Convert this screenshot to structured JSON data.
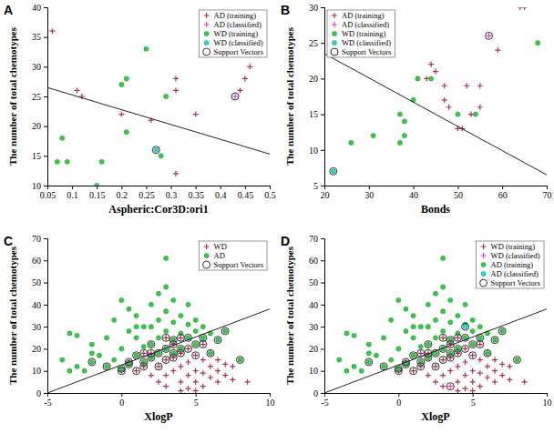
{
  "chart_data": [
    {
      "type": "scatter",
      "title": "A",
      "x_label": "Aspheric:Cor3D:ori1",
      "y_label": "The number of total chemotypes",
      "xlim": [
        0.05,
        0.5
      ],
      "xticks": [
        0.05,
        0.1,
        0.15,
        0.2,
        0.25,
        0.3,
        0.35,
        0.4,
        0.45,
        0.5
      ],
      "ylim": [
        10,
        40
      ],
      "yticks": [
        10,
        15,
        20,
        25,
        30,
        35,
        40
      ],
      "legend": "upper right",
      "series": [
        {
          "name": "AD (training)",
          "type": "scatter",
          "marker": "plus",
          "color": "#b0304a",
          "x": [
            0.06,
            0.11,
            0.12,
            0.2,
            0.26,
            0.31,
            0.31,
            0.31,
            0.35,
            0.44,
            0.45,
            0.46
          ],
          "values": [
            36,
            26,
            25,
            22,
            21,
            28,
            26,
            12,
            22,
            26,
            28,
            30
          ]
        },
        {
          "name": "AD (classified)",
          "type": "scatter",
          "marker": "plus",
          "color": "#e040d0",
          "x": [
            0.43
          ],
          "values": [
            25
          ]
        },
        {
          "name": "WD (training)",
          "type": "scatter",
          "marker": "dot",
          "color": "#33cc44",
          "x": [
            0.07,
            0.08,
            0.09,
            0.15,
            0.16,
            0.2,
            0.21,
            0.21,
            0.25,
            0.28,
            0.29
          ],
          "values": [
            14,
            18,
            14,
            10,
            14,
            27,
            28,
            19,
            33,
            15,
            25
          ]
        },
        {
          "name": "WD (classified)",
          "type": "scatter",
          "marker": "dot",
          "color": "#22dddd",
          "x": [
            0.27
          ],
          "values": [
            16
          ]
        },
        {
          "name": "Support Vectors",
          "type": "scatter",
          "marker": "circle",
          "color": "#333333",
          "x": [
            0.43,
            0.27
          ],
          "values": [
            25,
            16
          ]
        },
        {
          "type": "line",
          "color": "#222222",
          "x": [
            0.05,
            0.5
          ],
          "values": [
            26.5,
            15.3
          ]
        }
      ]
    },
    {
      "type": "scatter",
      "title": "B",
      "x_label": "Bonds",
      "y_label": "The number of total chemotypes",
      "xlim": [
        20,
        70
      ],
      "xticks": [
        20,
        30,
        40,
        50,
        60,
        70
      ],
      "ylim": [
        5,
        30
      ],
      "yticks": [
        5,
        10,
        15,
        20,
        25,
        30
      ],
      "legend": "upper left",
      "series": [
        {
          "name": "AD (training)",
          "type": "scatter",
          "marker": "plus",
          "color": "#b0304a",
          "x": [
            43,
            44,
            45,
            47,
            47,
            48,
            50,
            51,
            52,
            53,
            55,
            55,
            59,
            64,
            65
          ],
          "values": [
            20,
            22,
            21,
            19,
            17,
            16,
            13,
            13,
            19,
            15,
            19,
            16,
            24,
            30,
            30
          ]
        },
        {
          "name": "AD (classified)",
          "type": "scatter",
          "marker": "plus",
          "color": "#e040d0",
          "x": [
            57
          ],
          "values": [
            26
          ]
        },
        {
          "name": "WD (training)",
          "type": "scatter",
          "marker": "dot",
          "color": "#33cc44",
          "x": [
            26,
            31,
            37,
            37,
            38,
            38,
            40,
            41,
            44,
            50,
            54,
            68
          ],
          "values": [
            11,
            12,
            15,
            11,
            14,
            12,
            17,
            20,
            20,
            15,
            15,
            25
          ]
        },
        {
          "name": "WD (classified)",
          "type": "scatter",
          "marker": "dot",
          "color": "#22dddd",
          "x": [
            22
          ],
          "values": [
            7
          ]
        },
        {
          "name": "Support Vectors",
          "type": "scatter",
          "marker": "circle",
          "color": "#333333",
          "x": [
            57,
            22
          ],
          "values": [
            26,
            7
          ]
        },
        {
          "type": "line",
          "color": "#222222",
          "x": [
            20,
            70
          ],
          "values": [
            23.5,
            6.5
          ]
        }
      ]
    },
    {
      "type": "scatter",
      "title": "C",
      "x_label": "XlogP",
      "y_label": "The number of total chemotypes",
      "xlim": [
        -5,
        10
      ],
      "xticks": [
        -5,
        0,
        5,
        10
      ],
      "ylim": [
        0,
        70
      ],
      "yticks": [
        0,
        10,
        20,
        30,
        40,
        50,
        60,
        70
      ],
      "legend": "upper right",
      "series": [
        {
          "name": "WD",
          "type": "scatter",
          "marker": "plus",
          "color": "#b0304a",
          "x": [
            0.5,
            1,
            1.5,
            2,
            2,
            2.5,
            2.5,
            3,
            3,
            3,
            3.5,
            3.5,
            3.5,
            4,
            4,
            4,
            4.5,
            4.5,
            4.5,
            4.5,
            5,
            5,
            5,
            5.5,
            5.5,
            5.5,
            5.5,
            6,
            6,
            6,
            6.5,
            6.5,
            6.5,
            7,
            7,
            7.5,
            7.5,
            8.5,
            2,
            1.5,
            3,
            4,
            5,
            4,
            0
          ],
          "values": [
            14,
            10,
            12,
            8,
            18,
            5,
            12,
            3,
            8,
            15,
            10,
            16,
            22,
            5,
            12,
            18,
            2,
            8,
            14,
            20,
            5,
            10,
            17,
            3,
            9,
            15,
            22,
            7,
            12,
            18,
            5,
            10,
            15,
            8,
            13,
            6,
            12,
            5,
            22,
            18,
            25,
            25,
            1,
            1,
            10
          ]
        },
        {
          "name": "AD",
          "type": "scatter",
          "marker": "dot",
          "color": "#33cc44",
          "x": [
            -4,
            -3.5,
            -3,
            -3.5,
            -3,
            -2.5,
            -2,
            -2,
            -1.5,
            -1,
            -1,
            -0.5,
            -0.5,
            0,
            0,
            0,
            0.5,
            0.5,
            0.5,
            1,
            1,
            1,
            1.5,
            1.5,
            1.5,
            2,
            2,
            2,
            2,
            2.5,
            2.5,
            2.5,
            3,
            3,
            3,
            3,
            3,
            3.5,
            3.5,
            3.5,
            4,
            4,
            4,
            4.5,
            4.5,
            4.5,
            5,
            5,
            5,
            5.5,
            5.5,
            6,
            6,
            6.5,
            7,
            8,
            -2,
            1,
            2.5,
            3.5
          ],
          "values": [
            15,
            27,
            26,
            10,
            12,
            10,
            14,
            22,
            17,
            25,
            12,
            33,
            15,
            42,
            20,
            11,
            38,
            28,
            13,
            35,
            25,
            17,
            30,
            21,
            14,
            40,
            30,
            22,
            16,
            33,
            25,
            18,
            61,
            48,
            37,
            28,
            20,
            42,
            32,
            24,
            35,
            27,
            20,
            40,
            31,
            25,
            33,
            28,
            22,
            30,
            25,
            27,
            18,
            24,
            28,
            15,
            18,
            30,
            45,
            18
          ]
        },
        {
          "name": "Support Vectors",
          "type": "scatter",
          "marker": "circle",
          "color": "#333333",
          "x": [
            -2,
            -1,
            0,
            0,
            0.5,
            0.5,
            1,
            1,
            1.5,
            1.5,
            1.5,
            2,
            2,
            2,
            2.5,
            2.5,
            3,
            3,
            3,
            3.5,
            3.5,
            3.5,
            3.5,
            4,
            4,
            4,
            4.5,
            4.5,
            5,
            5,
            5.5,
            5.5,
            6,
            6.5,
            8,
            7
          ],
          "values": [
            14,
            12,
            11,
            10,
            13,
            14,
            17,
            10,
            14,
            12,
            18,
            16,
            18,
            22,
            18,
            12,
            20,
            15,
            25,
            24,
            22,
            18,
            16,
            20,
            25,
            18,
            25,
            20,
            22,
            17,
            25,
            22,
            18,
            24,
            15,
            28
          ]
        },
        {
          "type": "line",
          "color": "#222222",
          "x": [
            -5,
            10
          ],
          "values": [
            0,
            38
          ]
        }
      ]
    },
    {
      "type": "scatter",
      "title": "D",
      "x_label": "XlogP",
      "y_label": "The number of total chemotypes",
      "xlim": [
        -5,
        10
      ],
      "xticks": [
        -5,
        0,
        5,
        10
      ],
      "ylim": [
        0,
        70
      ],
      "yticks": [
        0,
        10,
        20,
        30,
        40,
        50,
        60,
        70
      ],
      "legend": "upper right",
      "series": [
        {
          "name": "WD (training)",
          "type": "scatter",
          "marker": "plus",
          "color": "#b0304a",
          "x": [
            0.5,
            1,
            1.5,
            2,
            2,
            2.5,
            2.5,
            3,
            3,
            3,
            3.5,
            3.5,
            3.5,
            4,
            4,
            4,
            4.5,
            4.5,
            4.5,
            4.5,
            5,
            5,
            5,
            5.5,
            5.5,
            5.5,
            5.5,
            6,
            6,
            6,
            6.5,
            6.5,
            6.5,
            7,
            7,
            7.5,
            7.5,
            8.5,
            2,
            1.5,
            3,
            4,
            5,
            4,
            0
          ],
          "values": [
            14,
            10,
            12,
            8,
            18,
            5,
            12,
            3,
            8,
            15,
            10,
            16,
            22,
            5,
            12,
            18,
            2,
            8,
            14,
            20,
            5,
            10,
            17,
            3,
            9,
            15,
            22,
            7,
            12,
            18,
            5,
            10,
            15,
            8,
            13,
            6,
            12,
            5,
            22,
            18,
            25,
            25,
            1,
            1,
            10
          ]
        },
        {
          "name": "WD (classified)",
          "type": "scatter",
          "marker": "plus",
          "color": "#e040d0",
          "x": [
            3.5
          ],
          "values": [
            3
          ]
        },
        {
          "name": "AD (training)",
          "type": "scatter",
          "marker": "dot",
          "color": "#33cc44",
          "x": [
            -4,
            -3.5,
            -3,
            -3.5,
            -3,
            -2.5,
            -2,
            -2,
            -1.5,
            -1,
            -1,
            -0.5,
            -0.5,
            0,
            0,
            0,
            0.5,
            0.5,
            0.5,
            1,
            1,
            1,
            1.5,
            1.5,
            1.5,
            2,
            2,
            2,
            2,
            2.5,
            2.5,
            2.5,
            3,
            3,
            3,
            3,
            3,
            3.5,
            3.5,
            3.5,
            4,
            4,
            4,
            4.5,
            4.5,
            4.5,
            5,
            5,
            5,
            5.5,
            5.5,
            6,
            6,
            6.5,
            7,
            8,
            -2,
            1,
            2.5,
            3.5
          ],
          "values": [
            15,
            27,
            26,
            10,
            12,
            10,
            14,
            22,
            17,
            25,
            12,
            33,
            15,
            42,
            20,
            11,
            38,
            28,
            13,
            35,
            25,
            17,
            30,
            21,
            14,
            40,
            30,
            22,
            16,
            33,
            25,
            18,
            61,
            48,
            37,
            28,
            20,
            42,
            32,
            24,
            35,
            27,
            20,
            40,
            31,
            25,
            33,
            28,
            22,
            30,
            25,
            27,
            18,
            24,
            28,
            15,
            18,
            30,
            45,
            18
          ]
        },
        {
          "name": "AD (classified)",
          "type": "scatter",
          "marker": "dot",
          "color": "#22dddd",
          "x": [
            4.5
          ],
          "values": [
            30
          ]
        },
        {
          "name": "Support Vectors",
          "type": "scatter",
          "marker": "circle",
          "color": "#333333",
          "x": [
            -2,
            -1,
            0,
            0,
            0.5,
            0.5,
            1,
            1,
            1.5,
            1.5,
            1.5,
            2,
            2,
            2,
            2.5,
            2.5,
            3,
            3,
            3,
            3.5,
            3.5,
            3.5,
            3.5,
            4,
            4,
            4,
            4.5,
            4.5,
            5,
            5,
            5.5,
            5.5,
            6,
            6.5,
            8,
            7,
            3.5,
            4.5
          ],
          "values": [
            14,
            12,
            11,
            10,
            13,
            14,
            17,
            10,
            14,
            12,
            18,
            16,
            18,
            22,
            18,
            12,
            20,
            15,
            25,
            24,
            22,
            18,
            16,
            20,
            25,
            18,
            25,
            20,
            22,
            17,
            25,
            22,
            18,
            24,
            15,
            28,
            3,
            30
          ]
        },
        {
          "type": "line",
          "color": "#222222",
          "x": [
            -5,
            10
          ],
          "values": [
            0,
            38
          ]
        }
      ]
    }
  ]
}
